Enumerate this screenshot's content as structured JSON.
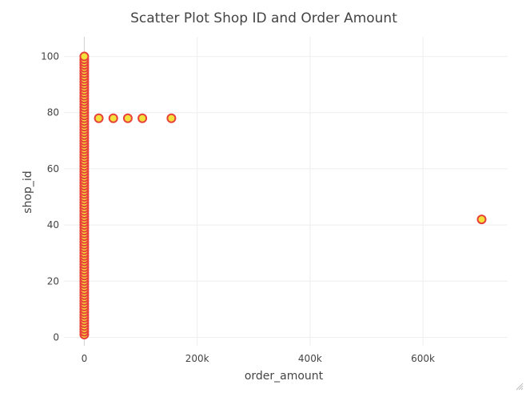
{
  "chart_data": {
    "type": "scatter",
    "title": "Scatter Plot Shop ID and Order Amount",
    "xlabel": "order_amount",
    "ylabel": "shop_id",
    "xlim": [
      -36000,
      750000
    ],
    "ylim": [
      -3,
      107
    ],
    "xticks": [
      {
        "value": 0,
        "label": "0"
      },
      {
        "value": 200000,
        "label": "200k"
      },
      {
        "value": 400000,
        "label": "400k"
      },
      {
        "value": 600000,
        "label": "600k"
      }
    ],
    "yticks": [
      {
        "value": 0,
        "label": "0"
      },
      {
        "value": 20,
        "label": "20"
      },
      {
        "value": 40,
        "label": "40"
      },
      {
        "value": 60,
        "label": "60"
      },
      {
        "value": 80,
        "label": "80"
      },
      {
        "value": 100,
        "label": "100"
      }
    ],
    "grid": true,
    "marker_fill": "#f2e13d",
    "marker_outline": "#e8413a",
    "series": [
      {
        "points": [
          [
            0,
            1
          ],
          [
            0,
            2
          ],
          [
            0,
            3
          ],
          [
            0,
            4
          ],
          [
            0,
            5
          ],
          [
            0,
            6
          ],
          [
            0,
            7
          ],
          [
            0,
            8
          ],
          [
            0,
            9
          ],
          [
            0,
            10
          ],
          [
            0,
            11
          ],
          [
            0,
            12
          ],
          [
            0,
            13
          ],
          [
            0,
            14
          ],
          [
            0,
            15
          ],
          [
            0,
            16
          ],
          [
            0,
            17
          ],
          [
            0,
            18
          ],
          [
            0,
            19
          ],
          [
            0,
            20
          ],
          [
            0,
            21
          ],
          [
            0,
            22
          ],
          [
            0,
            23
          ],
          [
            0,
            24
          ],
          [
            0,
            25
          ],
          [
            0,
            26
          ],
          [
            0,
            27
          ],
          [
            0,
            28
          ],
          [
            0,
            29
          ],
          [
            0,
            30
          ],
          [
            0,
            31
          ],
          [
            0,
            32
          ],
          [
            0,
            33
          ],
          [
            0,
            34
          ],
          [
            0,
            35
          ],
          [
            0,
            36
          ],
          [
            0,
            37
          ],
          [
            0,
            38
          ],
          [
            0,
            39
          ],
          [
            0,
            40
          ],
          [
            0,
            41
          ],
          [
            0,
            42
          ],
          [
            0,
            43
          ],
          [
            0,
            44
          ],
          [
            0,
            45
          ],
          [
            0,
            46
          ],
          [
            0,
            47
          ],
          [
            0,
            48
          ],
          [
            0,
            49
          ],
          [
            0,
            50
          ],
          [
            0,
            51
          ],
          [
            0,
            52
          ],
          [
            0,
            53
          ],
          [
            0,
            54
          ],
          [
            0,
            55
          ],
          [
            0,
            56
          ],
          [
            0,
            57
          ],
          [
            0,
            58
          ],
          [
            0,
            59
          ],
          [
            0,
            60
          ],
          [
            0,
            61
          ],
          [
            0,
            62
          ],
          [
            0,
            63
          ],
          [
            0,
            64
          ],
          [
            0,
            65
          ],
          [
            0,
            66
          ],
          [
            0,
            67
          ],
          [
            0,
            68
          ],
          [
            0,
            69
          ],
          [
            0,
            70
          ],
          [
            0,
            71
          ],
          [
            0,
            72
          ],
          [
            0,
            73
          ],
          [
            0,
            74
          ],
          [
            0,
            75
          ],
          [
            0,
            76
          ],
          [
            0,
            77
          ],
          [
            0,
            78
          ],
          [
            0,
            79
          ],
          [
            0,
            80
          ],
          [
            0,
            81
          ],
          [
            0,
            82
          ],
          [
            0,
            83
          ],
          [
            0,
            84
          ],
          [
            0,
            85
          ],
          [
            0,
            86
          ],
          [
            0,
            87
          ],
          [
            0,
            88
          ],
          [
            0,
            89
          ],
          [
            0,
            90
          ],
          [
            0,
            91
          ],
          [
            0,
            92
          ],
          [
            0,
            93
          ],
          [
            0,
            94
          ],
          [
            0,
            95
          ],
          [
            0,
            96
          ],
          [
            0,
            97
          ],
          [
            0,
            98
          ],
          [
            0,
            99
          ],
          [
            0,
            100
          ],
          [
            25725,
            78
          ],
          [
            51450,
            78
          ],
          [
            77175,
            78
          ],
          [
            102900,
            78
          ],
          [
            154350,
            78
          ],
          [
            704000,
            42
          ]
        ]
      }
    ]
  },
  "icons": {
    "resize_handle": "resize-grip-icon"
  }
}
